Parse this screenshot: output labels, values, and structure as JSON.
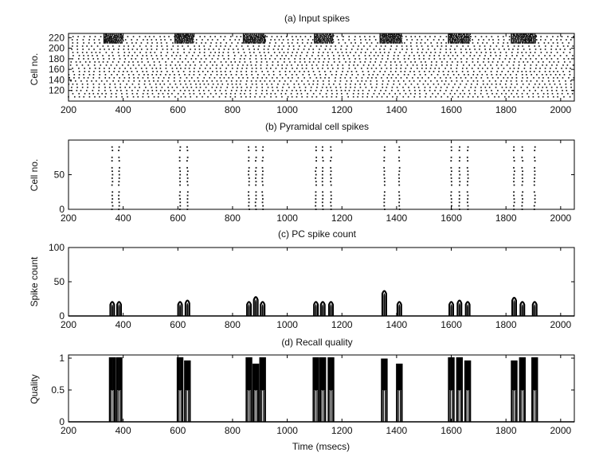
{
  "chart_data": [
    {
      "type": "scatter",
      "title": "(a) Input spikes",
      "xlabel": "",
      "ylabel": "Cell no.",
      "xlim": [
        200,
        2050
      ],
      "ylim": [
        100,
        228
      ],
      "xticks": [
        200,
        400,
        600,
        800,
        1000,
        1200,
        1400,
        1600,
        1800,
        2000
      ],
      "yticks": [
        120,
        140,
        160,
        180,
        200,
        220
      ],
      "grid": false,
      "raster": {
        "cell_min": 108,
        "cell_max": 227,
        "cell_step": 6,
        "background_interval_ms": 18,
        "bursts": [
          {
            "t_start": 330,
            "t_end": 400,
            "cells": [
              210,
              227
            ]
          },
          {
            "t_start": 590,
            "t_end": 660,
            "cells": [
              210,
              227
            ]
          },
          {
            "t_start": 840,
            "t_end": 920,
            "cells": [
              210,
              227
            ]
          },
          {
            "t_start": 1100,
            "t_end": 1170,
            "cells": [
              210,
              227
            ]
          },
          {
            "t_start": 1340,
            "t_end": 1420,
            "cells": [
              210,
              227
            ]
          },
          {
            "t_start": 1590,
            "t_end": 1670,
            "cells": [
              210,
              227
            ]
          },
          {
            "t_start": 1820,
            "t_end": 1910,
            "cells": [
              210,
              227
            ]
          }
        ]
      }
    },
    {
      "type": "scatter",
      "title": "(b) Pyramidal cell spikes",
      "xlabel": "",
      "ylabel": "Cell no.",
      "xlim": [
        200,
        2050
      ],
      "ylim": [
        0,
        100
      ],
      "xticks": [
        200,
        400,
        600,
        800,
        1000,
        1200,
        1400,
        1600,
        1800,
        2000
      ],
      "yticks": [
        0,
        50
      ],
      "grid": false,
      "raster": {
        "spike_times": [
          360,
          385,
          608,
          635,
          860,
          885,
          910,
          1105,
          1130,
          1160,
          1355,
          1410,
          1600,
          1630,
          1660,
          1830,
          1860,
          1905
        ],
        "cells": [
          0,
          5,
          10,
          15,
          20,
          25,
          35,
          40,
          45,
          50,
          55,
          60,
          70,
          75,
          85,
          90
        ]
      }
    },
    {
      "type": "line",
      "title": "(c) PC spike count",
      "xlabel": "",
      "ylabel": "Spike count",
      "xlim": [
        200,
        2050
      ],
      "ylim": [
        0,
        100
      ],
      "xticks": [
        200,
        400,
        600,
        800,
        1000,
        1200,
        1400,
        1600,
        1800,
        2000
      ],
      "yticks": [
        0,
        50,
        100
      ],
      "grid": false,
      "bumps": [
        {
          "t": 360,
          "peak": 20
        },
        {
          "t": 385,
          "peak": 20
        },
        {
          "t": 608,
          "peak": 20
        },
        {
          "t": 635,
          "peak": 22
        },
        {
          "t": 860,
          "peak": 20
        },
        {
          "t": 885,
          "peak": 27
        },
        {
          "t": 910,
          "peak": 20
        },
        {
          "t": 1105,
          "peak": 20
        },
        {
          "t": 1130,
          "peak": 20
        },
        {
          "t": 1160,
          "peak": 20
        },
        {
          "t": 1355,
          "peak": 36
        },
        {
          "t": 1410,
          "peak": 20
        },
        {
          "t": 1600,
          "peak": 20
        },
        {
          "t": 1630,
          "peak": 22
        },
        {
          "t": 1660,
          "peak": 20
        },
        {
          "t": 1830,
          "peak": 26
        },
        {
          "t": 1860,
          "peak": 20
        },
        {
          "t": 1905,
          "peak": 20
        }
      ],
      "bump_width_ms": 14
    },
    {
      "type": "line",
      "title": "(d) Recall quality",
      "xlabel": "Time (msecs)",
      "ylabel": "Quality",
      "xlim": [
        200,
        2050
      ],
      "ylim": [
        0,
        1.05
      ],
      "xticks": [
        200,
        400,
        600,
        800,
        1000,
        1200,
        1400,
        1600,
        1800,
        2000
      ],
      "yticks": [
        0,
        0.5,
        1
      ],
      "grid": false,
      "pulses": [
        {
          "t": 360,
          "peak": 1.0
        },
        {
          "t": 385,
          "peak": 1.0
        },
        {
          "t": 608,
          "peak": 1.0
        },
        {
          "t": 635,
          "peak": 0.95
        },
        {
          "t": 860,
          "peak": 1.0
        },
        {
          "t": 885,
          "peak": 0.9
        },
        {
          "t": 910,
          "peak": 1.0
        },
        {
          "t": 1105,
          "peak": 1.0
        },
        {
          "t": 1130,
          "peak": 1.0
        },
        {
          "t": 1160,
          "peak": 1.0
        },
        {
          "t": 1355,
          "peak": 0.98
        },
        {
          "t": 1410,
          "peak": 0.9
        },
        {
          "t": 1600,
          "peak": 1.0
        },
        {
          "t": 1630,
          "peak": 1.0
        },
        {
          "t": 1660,
          "peak": 0.95
        },
        {
          "t": 1830,
          "peak": 0.95
        },
        {
          "t": 1860,
          "peak": 1.0
        },
        {
          "t": 1905,
          "peak": 1.0
        }
      ],
      "pulse_width_ms": 18,
      "plateau": 0.5
    }
  ]
}
